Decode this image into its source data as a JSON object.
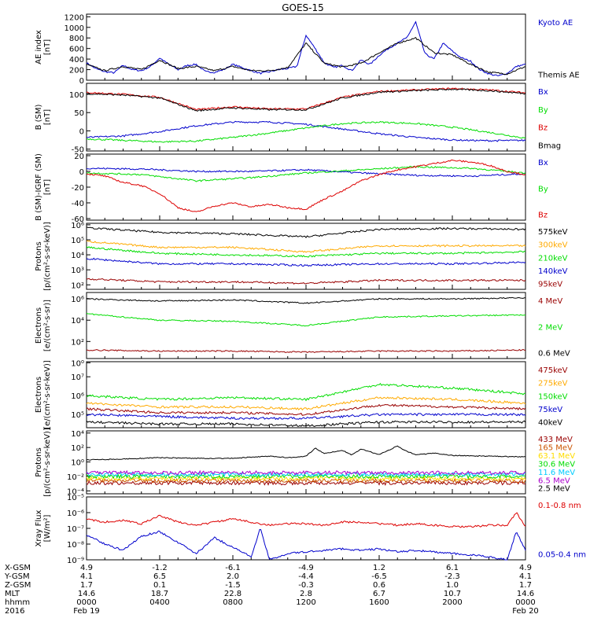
{
  "title": "GOES-15",
  "colors": {
    "black": "#000000",
    "blue": "#0000cc",
    "green": "#00dd00",
    "red": "#dd0000",
    "darkred": "#990000",
    "orange": "#ffaa00",
    "cyan": "#00ccff",
    "lime": "#99ff00",
    "yellow": "#ffdd00",
    "brown": "#cc5500",
    "purple": "#aa00cc"
  },
  "chart_data": [
    {
      "id": "ae",
      "type": "line",
      "ylabel": "AE index\n[nT]",
      "yticks": [
        "1200",
        "1000",
        "800",
        "600",
        "400",
        "200",
        "0"
      ],
      "ylim": [
        0,
        1250
      ],
      "series": [
        {
          "name": "Kyoto AE",
          "color": "blue",
          "x": [
            0,
            0.5,
            1,
            1.5,
            2,
            2.5,
            3,
            3.5,
            4,
            4.5,
            5,
            5.5,
            6,
            6.5,
            7,
            7.5,
            8,
            8.5,
            9,
            9.5,
            10,
            10.5,
            11,
            11.5,
            12,
            12.5,
            13,
            13.5,
            14,
            14.5,
            15,
            15.5,
            16,
            16.5,
            17,
            17.5,
            18,
            18.5,
            19,
            19.5,
            20,
            20.5,
            21,
            21.5,
            22,
            22.5,
            23,
            23.5,
            24
          ],
          "y": [
            330,
            220,
            160,
            140,
            280,
            200,
            180,
            260,
            420,
            300,
            200,
            280,
            300,
            160,
            150,
            200,
            300,
            240,
            180,
            130,
            160,
            200,
            220,
            260,
            850,
            600,
            330,
            240,
            280,
            180,
            380,
            300,
            470,
            600,
            700,
            800,
            1100,
            500,
            400,
            700,
            550,
            420,
            360,
            200,
            120,
            80,
            130,
            260,
            300
          ]
        },
        {
          "name": "Themis AE",
          "color": "black",
          "x": [
            0,
            1,
            2,
            3,
            4,
            5,
            6,
            7,
            8,
            9,
            10,
            11,
            12,
            13,
            14,
            15,
            16,
            17,
            18,
            19,
            20,
            21,
            22,
            23,
            24
          ],
          "y": [
            300,
            180,
            260,
            200,
            380,
            220,
            260,
            180,
            260,
            180,
            180,
            240,
            700,
            320,
            250,
            320,
            520,
            700,
            800,
            520,
            480,
            300,
            150,
            120,
            260
          ]
        }
      ]
    },
    {
      "id": "bsm",
      "type": "line",
      "ylabel": "B (SM)\n[nT]",
      "yticks": [
        "100",
        "50",
        "0",
        "-50"
      ],
      "ylim": [
        -55,
        130
      ],
      "series": [
        {
          "name": "Bx",
          "color": "blue",
          "x": [
            0,
            2,
            4,
            6,
            8,
            10,
            12,
            14,
            16,
            18,
            20,
            22,
            24
          ],
          "y": [
            -18,
            -14,
            -2,
            14,
            24,
            24,
            18,
            5,
            -8,
            -18,
            -25,
            -27,
            -26
          ]
        },
        {
          "name": "By",
          "color": "green",
          "x": [
            0,
            2,
            4,
            6,
            8,
            10,
            12,
            14,
            16,
            18,
            20,
            22,
            24
          ],
          "y": [
            -22,
            -26,
            -30,
            -28,
            -18,
            -6,
            8,
            20,
            24,
            20,
            10,
            -4,
            -20
          ]
        },
        {
          "name": "Bz",
          "color": "red",
          "x": [
            0,
            2,
            4,
            6,
            8,
            10,
            12,
            14,
            16,
            18,
            20,
            22,
            24
          ],
          "y": [
            105,
            100,
            92,
            58,
            66,
            60,
            60,
            92,
            108,
            112,
            116,
            112,
            104
          ]
        },
        {
          "name": "Bmag",
          "color": "black",
          "x": [
            0,
            2,
            4,
            6,
            8,
            10,
            12,
            14,
            16,
            18,
            20,
            22,
            24
          ],
          "y": [
            102,
            98,
            90,
            55,
            63,
            58,
            58,
            90,
            106,
            110,
            114,
            110,
            102
          ]
        }
      ]
    },
    {
      "id": "bigrf",
      "type": "line",
      "ylabel": "B (SM)-IGRF (SM)\n[nT]",
      "yticks": [
        "20",
        "0",
        "-20",
        "-40",
        "-60"
      ],
      "ylim": [
        -62,
        22
      ],
      "series": [
        {
          "name": "Bx",
          "color": "blue",
          "x": [
            0,
            3,
            6,
            9,
            12,
            15,
            18,
            21,
            24
          ],
          "y": [
            4,
            3,
            0,
            0,
            2,
            -2,
            -5,
            -6,
            -3
          ]
        },
        {
          "name": "By",
          "color": "green",
          "x": [
            0,
            3,
            6,
            9,
            12,
            15,
            18,
            21,
            24
          ],
          "y": [
            -2,
            -4,
            -12,
            -8,
            -2,
            2,
            6,
            4,
            -2
          ]
        },
        {
          "name": "Bz",
          "color": "red",
          "x": [
            0,
            1,
            2,
            3,
            4,
            5,
            6,
            7,
            8,
            9,
            10,
            11,
            12,
            13,
            14,
            15,
            16,
            17,
            18,
            19,
            20,
            21,
            22,
            23,
            24
          ],
          "y": [
            -3,
            -6,
            -14,
            -18,
            -28,
            -46,
            -52,
            -44,
            -40,
            -45,
            -42,
            -46,
            -48,
            -35,
            -25,
            -12,
            -4,
            2,
            6,
            10,
            14,
            12,
            8,
            0,
            -4
          ]
        }
      ]
    },
    {
      "id": "protons",
      "type": "line",
      "log": true,
      "ylabel": "Protons\n[p/(cm²-s-sr-keV)]",
      "yticks": [
        "10⁶",
        "10⁵",
        "10⁴",
        "10³",
        "10²"
      ],
      "ylim": [
        1.7,
        6.1
      ],
      "series": [
        {
          "name": "575keV",
          "color": "black",
          "x": [
            0,
            4,
            8,
            12,
            16,
            20,
            24
          ],
          "y": [
            5.8,
            5.5,
            5.4,
            5.2,
            5.7,
            5.75,
            5.7
          ]
        },
        {
          "name": "300keV",
          "color": "orange",
          "x": [
            0,
            4,
            8,
            12,
            16,
            20,
            24
          ],
          "y": [
            4.9,
            4.5,
            4.5,
            4.2,
            4.6,
            4.6,
            4.6
          ]
        },
        {
          "name": "210keV",
          "color": "green",
          "x": [
            0,
            4,
            8,
            12,
            16,
            20,
            24
          ],
          "y": [
            4.5,
            4.1,
            4.0,
            3.9,
            4.1,
            4.1,
            4.2
          ]
        },
        {
          "name": "140keV",
          "color": "blue",
          "x": [
            0,
            4,
            8,
            12,
            16,
            20,
            24
          ],
          "y": [
            3.75,
            3.4,
            3.4,
            3.3,
            3.4,
            3.4,
            3.5
          ]
        },
        {
          "name": "95keV",
          "color": "darkred",
          "x": [
            0,
            4,
            8,
            12,
            16,
            20,
            24
          ],
          "y": [
            2.4,
            2.2,
            2.2,
            2.1,
            2.3,
            2.3,
            2.3
          ]
        }
      ]
    },
    {
      "id": "electrons1",
      "type": "line",
      "log": true,
      "ylabel": "Electrons\n[e/(cm²-s-sr)]",
      "yticks": [
        "10⁶",
        "10⁴",
        "10²",
        "10⁰"
      ],
      "ylim": [
        0.4,
        6.6
      ],
      "series": [
        {
          "name": "4 MeV",
          "color": "darkred",
          "x": [
            0,
            4,
            8,
            12,
            16,
            20,
            24
          ],
          "y": [
            1.2,
            1.1,
            1.1,
            1.0,
            1.1,
            1.1,
            1.2
          ]
        },
        {
          "name": "2 MeV",
          "color": "green",
          "x": [
            0,
            4,
            8,
            12,
            16,
            20,
            24
          ],
          "y": [
            4.6,
            4.0,
            3.9,
            3.5,
            4.3,
            4.4,
            4.5
          ]
        },
        {
          "name": "0.6 MeV",
          "color": "black",
          "x": [
            0,
            4,
            8,
            12,
            16,
            20,
            24
          ],
          "y": [
            6.0,
            5.8,
            5.9,
            5.6,
            6.0,
            6.0,
            6.1
          ]
        }
      ]
    },
    {
      "id": "electrons2",
      "type": "line",
      "log": true,
      "ylabel": "Electrons\n[e/(cm²-s-sr-keV)]",
      "yticks": [
        "10⁷",
        "10⁶",
        "10⁵"
      ],
      "ylim": [
        4.3,
        7.8
      ],
      "series": [
        {
          "name": "475keV",
          "color": "darkred",
          "x": [
            0,
            4,
            8,
            12,
            16,
            20,
            24
          ],
          "y": [
            5.3,
            5.1,
            5.1,
            5.0,
            5.5,
            5.4,
            5.3
          ]
        },
        {
          "name": "275keV",
          "color": "orange",
          "x": [
            0,
            4,
            8,
            12,
            16,
            20,
            24
          ],
          "y": [
            5.6,
            5.4,
            5.4,
            5.3,
            5.9,
            5.8,
            5.6
          ]
        },
        {
          "name": "150keV",
          "color": "green",
          "x": [
            0,
            4,
            8,
            12,
            16,
            20,
            24
          ],
          "y": [
            6.0,
            5.8,
            5.9,
            5.8,
            6.6,
            6.4,
            6.1
          ]
        },
        {
          "name": "75keV",
          "color": "blue",
          "x": [
            0,
            4,
            8,
            12,
            16,
            20,
            24
          ],
          "y": [
            5.0,
            4.9,
            4.8,
            4.8,
            5.0,
            5.0,
            5.0
          ]
        },
        {
          "name": "40keV",
          "color": "black",
          "x": [
            0,
            4,
            8,
            12,
            16,
            20,
            24
          ],
          "y": [
            4.6,
            4.5,
            4.5,
            4.4,
            4.6,
            4.6,
            4.6
          ]
        }
      ]
    },
    {
      "id": "protons2",
      "type": "line",
      "log": true,
      "ylabel": "Protons\n[p/(cm²-s-sr-keV)]",
      "yticks": [
        "10⁴",
        "10²",
        "10⁰",
        "10⁻²",
        "10⁻⁴"
      ],
      "ylim": [
        -4.4,
        4.3
      ],
      "series": [
        {
          "name": "433 MeV",
          "color": "darkred",
          "x": [
            0,
            6,
            12,
            18,
            24
          ],
          "y": [
            -2.9,
            -2.9,
            -2.9,
            -2.9,
            -2.9
          ]
        },
        {
          "name": "165 MeV",
          "color": "brown",
          "x": [
            0,
            6,
            12,
            18,
            24
          ],
          "y": [
            -2.6,
            -2.6,
            -2.6,
            -2.6,
            -2.6
          ]
        },
        {
          "name": "63.1 MeV",
          "color": "yellow",
          "x": [
            0,
            6,
            12,
            18,
            24
          ],
          "y": [
            -2.3,
            -2.3,
            -2.3,
            -2.3,
            -2.3
          ]
        },
        {
          "name": "30.6 MeV",
          "color": "green",
          "x": [
            0,
            6,
            12,
            18,
            24
          ],
          "y": [
            -2.0,
            -2.0,
            -2.0,
            -2.0,
            -2.0
          ]
        },
        {
          "name": "11.6 MeV",
          "color": "cyan",
          "x": [
            0,
            6,
            12,
            18,
            24
          ],
          "y": [
            -1.7,
            -1.7,
            -1.7,
            -1.7,
            -1.7
          ]
        },
        {
          "name": "6.5 MeV",
          "color": "purple",
          "x": [
            0,
            6,
            12,
            18,
            24
          ],
          "y": [
            -1.5,
            -1.5,
            -1.5,
            -1.5,
            -1.5
          ]
        },
        {
          "name": "2.5 MeV",
          "color": "black",
          "x": [
            0,
            2,
            4,
            6,
            8,
            10,
            11,
            12,
            12.5,
            13,
            14,
            14.5,
            15,
            16,
            17,
            17.5,
            18,
            19,
            20,
            22,
            24
          ],
          "y": [
            0.3,
            0.4,
            0.6,
            0.5,
            0.5,
            0.8,
            0.6,
            0.8,
            1.9,
            1.2,
            1.6,
            1.0,
            1.8,
            1.0,
            2.2,
            1.5,
            1.0,
            1.2,
            0.9,
            0.8,
            0.7
          ]
        }
      ]
    },
    {
      "id": "xray",
      "type": "line",
      "log": true,
      "ylabel": "Xray Flux\n[W/m²]",
      "yticks": [
        "10⁻⁵",
        "10⁻⁶",
        "10⁻⁷",
        "10⁻⁸",
        "10⁻⁹"
      ],
      "ylim": [
        -9,
        -5
      ],
      "series": [
        {
          "name": "0.1-0.8 nm",
          "color": "red",
          "x": [
            0,
            1,
            2,
            3,
            4,
            5,
            6,
            7,
            8,
            9,
            10,
            11,
            12,
            13,
            14,
            15,
            16,
            17,
            18,
            19,
            20,
            21,
            22,
            23,
            23.5,
            24
          ],
          "y": [
            -6.4,
            -6.6,
            -6.5,
            -6.7,
            -6.2,
            -6.6,
            -6.8,
            -6.6,
            -6.4,
            -6.6,
            -6.8,
            -6.7,
            -6.7,
            -6.8,
            -6.6,
            -6.6,
            -6.7,
            -6.8,
            -6.7,
            -6.8,
            -6.9,
            -6.9,
            -6.8,
            -6.8,
            -6.0,
            -6.9
          ]
        },
        {
          "name": "0.05-0.4 nm",
          "color": "blue",
          "x": [
            0,
            1,
            2,
            3,
            4,
            5,
            6,
            7,
            8,
            9,
            9.5,
            10,
            11,
            12,
            13,
            14,
            15,
            16,
            17,
            18,
            19,
            20,
            21,
            22,
            23,
            23.5,
            24
          ],
          "y": [
            -7.4,
            -8.0,
            -8.4,
            -7.5,
            -7.2,
            -7.9,
            -8.6,
            -7.6,
            -8.2,
            -8.8,
            -7.0,
            -9.0,
            -8.6,
            -8.5,
            -8.4,
            -8.3,
            -8.4,
            -8.3,
            -8.5,
            -8.4,
            -8.5,
            -8.6,
            -8.7,
            -8.8,
            -9.0,
            -7.2,
            -8.4
          ]
        }
      ]
    }
  ],
  "footer": {
    "row_labels": [
      "X-GSM",
      "Y-GSM",
      "Z-GSM",
      "MLT",
      "hhmm",
      "2016"
    ],
    "columns": [
      {
        "values": [
          "4.9",
          "4.1",
          "1.7",
          "14.6",
          "0000",
          "Feb 19"
        ]
      },
      {
        "values": [
          "-1.2",
          "6.5",
          "0.1",
          "18.7",
          "0400",
          ""
        ]
      },
      {
        "values": [
          "-6.1",
          "2.0",
          "-1.5",
          "22.8",
          "0800",
          ""
        ]
      },
      {
        "values": [
          "-4.9",
          "-4.4",
          "-0.3",
          "2.8",
          "1200",
          ""
        ]
      },
      {
        "values": [
          "1.2",
          "-6.5",
          "0.6",
          "6.7",
          "1600",
          ""
        ]
      },
      {
        "values": [
          "6.1",
          "-2.3",
          "1.0",
          "10.7",
          "2000",
          ""
        ]
      },
      {
        "values": [
          "4.9",
          "4.1",
          "1.7",
          "14.6",
          "0000",
          "Feb 20"
        ]
      }
    ]
  }
}
